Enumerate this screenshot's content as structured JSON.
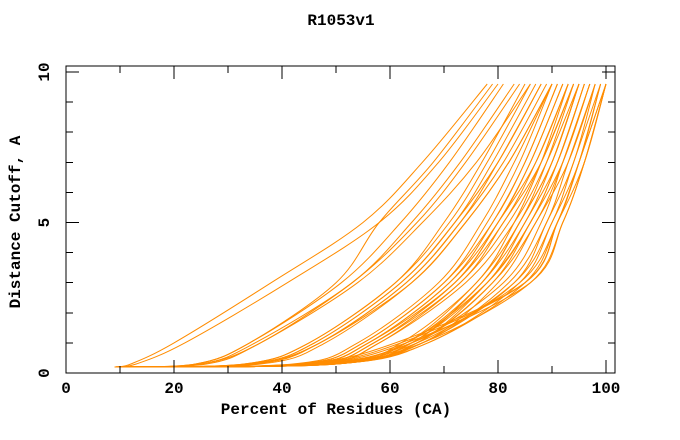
{
  "chart_data": {
    "type": "line",
    "title": "R1053v1",
    "xlabel": "Percent of Residues (CA)",
    "ylabel": "Distance Cutoff, A",
    "xlim": [
      0,
      101.7
    ],
    "ylim": [
      0,
      10.2
    ],
    "x_major_ticks": [
      0,
      20,
      40,
      60,
      80,
      100
    ],
    "x_minor_step": 10,
    "y_major_ticks": [
      0,
      5,
      10
    ],
    "y_minor_step": 1,
    "grid": false,
    "legend_position": "none",
    "curve_color": "#FF8C00",
    "frame_color": "#000000",
    "background_color": "#FFFFFF",
    "series_description": "Per-model accuracy curves: percent of CA residues under each distance cutoff; every curve starts near the common origin point and rises to the top of the plot",
    "common_start_point": [
      9,
      0.2
    ],
    "cutoff_levels": [
      0.3,
      1,
      3,
      5,
      7,
      9.6
    ],
    "series_x_at_cutoffs": [
      [
        12,
        20,
        38,
        55,
        66,
        78
      ],
      [
        13,
        22,
        41,
        58,
        69,
        80
      ],
      [
        24,
        34,
        50,
        58,
        68,
        79
      ],
      [
        24,
        34,
        51,
        62,
        71,
        81
      ],
      [
        25,
        35,
        53,
        64,
        73,
        83
      ],
      [
        25,
        36,
        53,
        65,
        74,
        84
      ],
      [
        26,
        36,
        54,
        66,
        76,
        86
      ],
      [
        33,
        45,
        61,
        70,
        77,
        85
      ],
      [
        33,
        45,
        61,
        71,
        78,
        86
      ],
      [
        34,
        46,
        62,
        72,
        79,
        87
      ],
      [
        34,
        46,
        62,
        72,
        80,
        88
      ],
      [
        35,
        47,
        63,
        73,
        80,
        88
      ],
      [
        34,
        47,
        63,
        73,
        81,
        89
      ],
      [
        35,
        47,
        64,
        74,
        82,
        90
      ],
      [
        36,
        48,
        64,
        74,
        82,
        90
      ],
      [
        43,
        55,
        70,
        78,
        84,
        90
      ],
      [
        42,
        54,
        69,
        77,
        83,
        90
      ],
      [
        43,
        55,
        70,
        79,
        85,
        91
      ],
      [
        44,
        56,
        71,
        79,
        85,
        91
      ],
      [
        44,
        56,
        71,
        80,
        86,
        92
      ],
      [
        45,
        57,
        72,
        80,
        86,
        92
      ],
      [
        44,
        56,
        72,
        80,
        87,
        93
      ],
      [
        45,
        57,
        72,
        81,
        87,
        93
      ],
      [
        45,
        57,
        73,
        81,
        88,
        94
      ],
      [
        46,
        58,
        73,
        82,
        88,
        94
      ],
      [
        46,
        58,
        74,
        83,
        89,
        95
      ],
      [
        50,
        62,
        76,
        83,
        88,
        93
      ],
      [
        49,
        63,
        76,
        84,
        89,
        94
      ],
      [
        50,
        64,
        77,
        84,
        90,
        95
      ],
      [
        48,
        64,
        77,
        85,
        90,
        95
      ],
      [
        50,
        64,
        78,
        85,
        91,
        96
      ],
      [
        47,
        63,
        78,
        86,
        91,
        96
      ],
      [
        49,
        65,
        79,
        86,
        92,
        97
      ],
      [
        50,
        65,
        79,
        87,
        92,
        97
      ],
      [
        48,
        66,
        80,
        87,
        93,
        98
      ],
      [
        49,
        65,
        78,
        86,
        91,
        96
      ],
      [
        47,
        63,
        77,
        84,
        90,
        95
      ],
      [
        46,
        64,
        81,
        88,
        92,
        97
      ],
      [
        48,
        66,
        82,
        89,
        93,
        98
      ],
      [
        50,
        66,
        83,
        89,
        94,
        98
      ],
      [
        47,
        65,
        83,
        90,
        94,
        99
      ],
      [
        49,
        67,
        84,
        90,
        95,
        99
      ],
      [
        46,
        64,
        84,
        91,
        95,
        100
      ],
      [
        50,
        67,
        85,
        91,
        96,
        100
      ],
      [
        44,
        62,
        85,
        91,
        95,
        99
      ],
      [
        45,
        63,
        86,
        92,
        96,
        100
      ],
      [
        48,
        66,
        86,
        92,
        96,
        100
      ],
      [
        43,
        61,
        85,
        91,
        95,
        100
      ]
    ]
  }
}
